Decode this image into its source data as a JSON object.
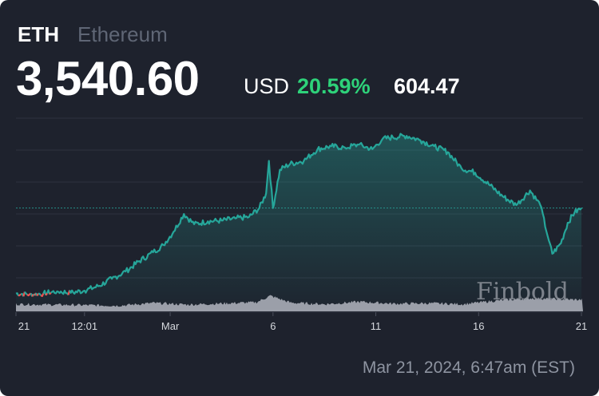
{
  "header": {
    "symbol": "ETH",
    "name": "Ethereum",
    "price": "3,540.60",
    "currency": "USD",
    "change_percent": "20.59%",
    "change_value": "604.47"
  },
  "timestamp": "Mar 21, 2024, 6:47am (EST)",
  "watermark": "Finbold",
  "colors": {
    "background": "#1e222d",
    "line_up": "#26a69a",
    "line_down": "#ef5350",
    "positive": "#2ed27a",
    "volume": "#b2b5be",
    "grid": "#2f3340"
  },
  "chart_data": {
    "type": "line",
    "title": "",
    "xlabel": "",
    "ylabel": "",
    "x_tick_labels": [
      "21",
      "12:01",
      "Mar",
      "6",
      "11",
      "16",
      "21"
    ],
    "x_tick_index": [
      0,
      2,
      4.5,
      7.5,
      10.5,
      13.5,
      16.5
    ],
    "x_range": [
      0,
      16.5
    ],
    "ylim": [
      2850,
      4150
    ],
    "reference_price": 3540.6,
    "grid": true,
    "legend": "none",
    "series": [
      {
        "x": [
          0,
          0.4,
          0.8,
          1.2,
          1.6,
          2.0,
          2.4,
          2.8,
          3.2,
          3.6,
          4.0,
          4.3,
          4.6,
          4.9,
          5.2,
          5.6,
          6.0,
          6.4,
          6.8,
          7.1,
          7.3,
          7.38,
          7.5,
          7.7,
          8.0,
          8.4,
          8.8,
          9.2,
          9.6,
          10.0,
          10.4,
          10.7,
          11.0,
          11.4,
          11.8,
          12.2,
          12.6,
          13.0,
          13.4,
          13.8,
          14.2,
          14.6,
          15.0,
          15.3,
          15.55,
          15.65,
          15.9,
          16.1,
          16.3,
          16.5
        ],
        "values": [
          2960,
          2955,
          2960,
          2975,
          2965,
          2980,
          3010,
          3060,
          3110,
          3180,
          3240,
          3290,
          3380,
          3500,
          3430,
          3450,
          3455,
          3470,
          3480,
          3540,
          3640,
          3860,
          3540,
          3800,
          3840,
          3860,
          3940,
          3960,
          3950,
          3970,
          3940,
          4010,
          4020,
          4030,
          4000,
          3960,
          3920,
          3810,
          3780,
          3700,
          3620,
          3560,
          3660,
          3560,
          3320,
          3230,
          3300,
          3440,
          3510,
          3540
        ]
      }
    ],
    "volume": {
      "x": [
        0,
        1,
        2,
        3,
        4,
        5,
        6,
        7,
        7.4,
        8,
        9,
        10,
        11,
        12,
        13,
        14,
        15,
        16,
        16.5
      ],
      "values": [
        0.3,
        0.28,
        0.26,
        0.24,
        0.35,
        0.28,
        0.33,
        0.38,
        0.65,
        0.36,
        0.3,
        0.4,
        0.32,
        0.34,
        0.3,
        0.45,
        0.55,
        0.5,
        0.48
      ]
    }
  }
}
